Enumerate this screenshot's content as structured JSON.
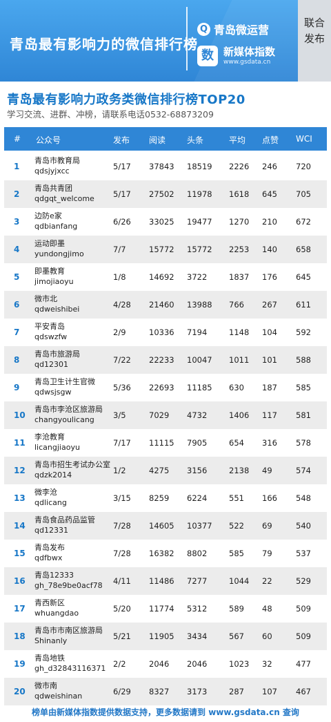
{
  "banner": {
    "title": "青岛最有影响力的微信排行榜",
    "logo1_icon": "Q",
    "logo1_text": "青岛微运营",
    "logo2_icon": "数",
    "logo2_text": "新媒体指数",
    "logo2_url": "www.gsdata.cn",
    "side_text": "联合\n发布",
    "colors": {
      "banner": "#2f86d6",
      "accent": "#1777c7",
      "row_alt": "#ececec"
    }
  },
  "heading": {
    "title": "青岛最有影响力政务类微信排行榜TOP20",
    "subtitle": "学习交流、进群、冲榜，请联系电话0532-68873209"
  },
  "table": {
    "columns": [
      "#",
      "公众号",
      "发布",
      "阅读",
      "头条",
      "平均",
      "点赞",
      "WCI"
    ],
    "rows": [
      {
        "rank": "1",
        "name": "青岛市教育局",
        "account": "qdsjyjxcc",
        "pub": "5/17",
        "read": "37843",
        "top": "18519",
        "avg": "2226",
        "like": "246",
        "wci": "720"
      },
      {
        "rank": "2",
        "name": "青岛共青团",
        "account": "qdgqt_welcome",
        "pub": "5/17",
        "read": "27502",
        "top": "11978",
        "avg": "1618",
        "like": "645",
        "wci": "705"
      },
      {
        "rank": "3",
        "name": "边防e家",
        "account": "qdbianfang",
        "pub": "6/26",
        "read": "33025",
        "top": "19477",
        "avg": "1270",
        "like": "210",
        "wci": "672"
      },
      {
        "rank": "4",
        "name": "运动即墨",
        "account": "yundongjimo",
        "pub": "7/7",
        "read": "15772",
        "top": "15772",
        "avg": "2253",
        "like": "140",
        "wci": "658"
      },
      {
        "rank": "5",
        "name": "即墨教育",
        "account": "jimojiaoyu",
        "pub": "1/8",
        "read": "14692",
        "top": "3722",
        "avg": "1837",
        "like": "176",
        "wci": "645"
      },
      {
        "rank": "6",
        "name": "微市北",
        "account": "qdweishibei",
        "pub": "4/28",
        "read": "21460",
        "top": "13988",
        "avg": "766",
        "like": "267",
        "wci": "611"
      },
      {
        "rank": "7",
        "name": "平安青岛",
        "account": "qdswzfw",
        "pub": "2/9",
        "read": "10336",
        "top": "7194",
        "avg": "1148",
        "like": "104",
        "wci": "592"
      },
      {
        "rank": "8",
        "name": "青岛市旅游局",
        "account": "qd12301",
        "pub": "7/22",
        "read": "22233",
        "top": "10047",
        "avg": "1011",
        "like": "101",
        "wci": "588"
      },
      {
        "rank": "9",
        "name": "青岛卫生计生官微",
        "account": "qdwsjsgw",
        "pub": "5/36",
        "read": "22693",
        "top": "11185",
        "avg": "630",
        "like": "187",
        "wci": "585"
      },
      {
        "rank": "10",
        "name": "青岛市李沧区旅游局",
        "account": "changyoulicang",
        "pub": "3/5",
        "read": "7029",
        "top": "4732",
        "avg": "1406",
        "like": "117",
        "wci": "581"
      },
      {
        "rank": "11",
        "name": "李沧教育",
        "account": "licangjiaoyu",
        "pub": "7/17",
        "read": "11115",
        "top": "7905",
        "avg": "654",
        "like": "316",
        "wci": "578"
      },
      {
        "rank": "12",
        "name": "青岛市招生考试办公室",
        "account": "qdzk2014",
        "pub": "1/2",
        "read": "4275",
        "top": "3156",
        "avg": "2138",
        "like": "49",
        "wci": "574"
      },
      {
        "rank": "13",
        "name": "微李沧",
        "account": "qdlicang",
        "pub": "3/15",
        "read": "8259",
        "top": "6224",
        "avg": "551",
        "like": "166",
        "wci": "548"
      },
      {
        "rank": "14",
        "name": "青岛食品药品监管",
        "account": "qd12331",
        "pub": "7/28",
        "read": "14605",
        "top": "10377",
        "avg": "522",
        "like": "69",
        "wci": "540"
      },
      {
        "rank": "15",
        "name": "青岛发布",
        "account": "qdfbwx",
        "pub": "7/28",
        "read": "16382",
        "top": "8802",
        "avg": "585",
        "like": "79",
        "wci": "537"
      },
      {
        "rank": "16",
        "name": "青岛12333",
        "account": "gh_78e9be0acf78",
        "pub": "4/11",
        "read": "11486",
        "top": "7277",
        "avg": "1044",
        "like": "22",
        "wci": "529"
      },
      {
        "rank": "17",
        "name": "青西新区",
        "account": "whuangdao",
        "pub": "5/20",
        "read": "11774",
        "top": "5312",
        "avg": "589",
        "like": "48",
        "wci": "509"
      },
      {
        "rank": "18",
        "name": "青岛市市南区旅游局",
        "account": "Shinanly",
        "pub": "5/21",
        "read": "11905",
        "top": "3434",
        "avg": "567",
        "like": "60",
        "wci": "509"
      },
      {
        "rank": "19",
        "name": "青岛地铁",
        "account": "gh_d32843116371",
        "pub": "2/2",
        "read": "2046",
        "top": "2046",
        "avg": "1023",
        "like": "32",
        "wci": "477"
      },
      {
        "rank": "20",
        "name": "微市南",
        "account": "qdweishinan",
        "pub": "6/29",
        "read": "8327",
        "top": "3173",
        "avg": "287",
        "like": "107",
        "wci": "467"
      }
    ]
  },
  "footer": {
    "text": "榜单由新媒体指数提供数据支持，更多数据请到 www.gsdata.cn 查询"
  }
}
